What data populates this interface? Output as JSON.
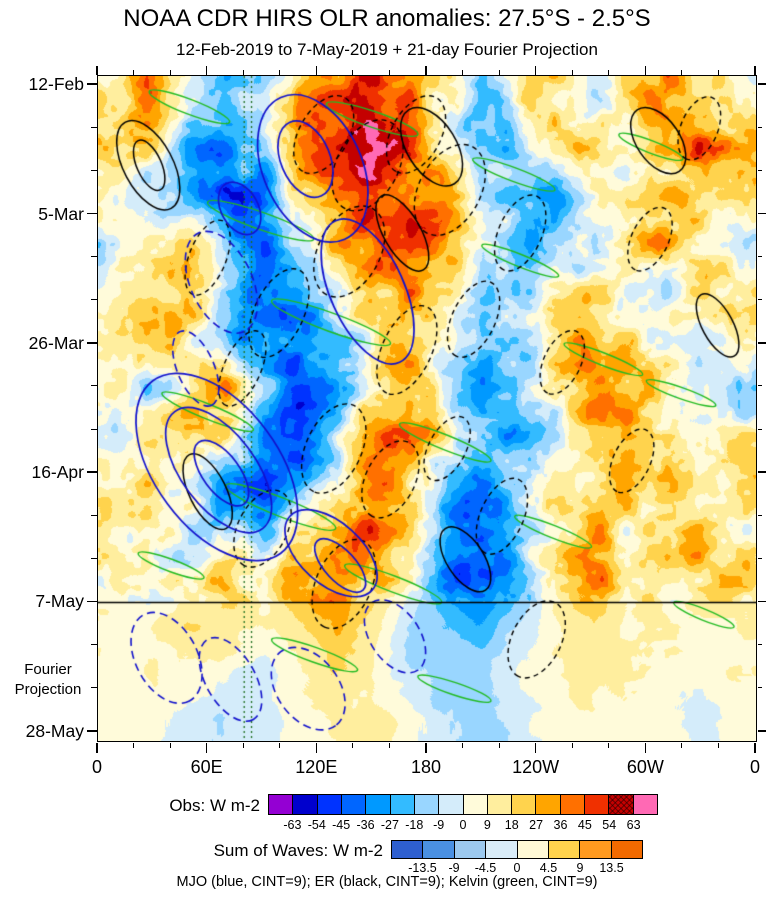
{
  "chart_data": {
    "type": "heatmap",
    "title": "NOAA CDR HIRS OLR anomalies: 27.5°S - 2.5°S",
    "subtitle": "12-Feb-2019 to 7-May-2019 + 21-day Fourier Projection",
    "value_unit": "W m-2",
    "projection_label_lines": [
      "Fourier",
      "Projection"
    ],
    "legend_line": "MJO (blue, CINT=9); ER (black, CINT=9); Kelvin (green, CINT=9)",
    "x_axis": {
      "unit": "longitude (deg east, 0-360)",
      "range": [
        0,
        360
      ],
      "minor_step_deg": 20,
      "ticks": [
        {
          "label": "0",
          "lon": 0
        },
        {
          "label": "60E",
          "lon": 60
        },
        {
          "label": "120E",
          "lon": 120
        },
        {
          "label": "180",
          "lon": 180
        },
        {
          "label": "120W",
          "lon": 240
        },
        {
          "label": "60W",
          "lon": 300
        },
        {
          "label": "0",
          "lon": 360
        }
      ]
    },
    "y_axis": {
      "unit": "days since 12-Feb-2019 (time increases downward)",
      "range_days": [
        -1.5,
        106.5
      ],
      "minor_step_days": 7,
      "ticks": [
        {
          "label": "12-Feb",
          "day": 0
        },
        {
          "label": "5-Mar",
          "day": 21
        },
        {
          "label": "26-Mar",
          "day": 42
        },
        {
          "label": "16-Apr",
          "day": 63
        },
        {
          "label": "7-May",
          "day": 84
        },
        {
          "label": "28-May",
          "day": 105
        }
      ]
    },
    "grid": {
      "lons": [
        0,
        20,
        40,
        60,
        80,
        100,
        120,
        140,
        160,
        180,
        200,
        220,
        240,
        260,
        280,
        300,
        320,
        340
      ],
      "days": [
        0,
        8,
        16,
        24,
        32,
        40,
        48,
        56,
        64,
        72,
        80,
        88,
        96,
        104
      ],
      "values": [
        [
          18,
          36,
          -9,
          -27,
          -18,
          27,
          45,
          54,
          36,
          9,
          -18,
          9,
          18,
          -9,
          27,
          36,
          18,
          9
        ],
        [
          27,
          18,
          -27,
          -36,
          -9,
          36,
          54,
          63,
          45,
          18,
          -27,
          -9,
          9,
          18,
          -9,
          27,
          45,
          27
        ],
        [
          9,
          -9,
          -18,
          -45,
          -36,
          9,
          45,
          54,
          36,
          27,
          -9,
          -18,
          -27,
          9,
          27,
          18,
          27,
          18
        ],
        [
          -9,
          9,
          18,
          -27,
          -45,
          -18,
          27,
          45,
          54,
          36,
          9,
          -27,
          -18,
          -9,
          18,
          36,
          9,
          -9
        ],
        [
          9,
          18,
          27,
          -9,
          -36,
          -27,
          9,
          27,
          36,
          18,
          -9,
          -18,
          9,
          18,
          9,
          -9,
          18,
          27
        ],
        [
          18,
          27,
          9,
          -18,
          -27,
          -36,
          -18,
          9,
          27,
          9,
          -27,
          -9,
          18,
          27,
          18,
          9,
          -9,
          9
        ],
        [
          9,
          -9,
          18,
          27,
          -18,
          -45,
          -27,
          18,
          36,
          -9,
          -36,
          -18,
          9,
          36,
          27,
          18,
          9,
          -18
        ],
        [
          -9,
          9,
          27,
          18,
          -36,
          -54,
          -18,
          27,
          45,
          18,
          -18,
          -27,
          -9,
          27,
          36,
          9,
          -9,
          9
        ],
        [
          9,
          18,
          9,
          -27,
          -45,
          -27,
          9,
          36,
          27,
          -18,
          -36,
          -9,
          18,
          9,
          18,
          27,
          9,
          18
        ],
        [
          18,
          9,
          -9,
          -18,
          -27,
          9,
          36,
          45,
          18,
          -27,
          -45,
          -18,
          9,
          27,
          9,
          18,
          27,
          9
        ],
        [
          9,
          -9,
          9,
          27,
          9,
          27,
          45,
          27,
          9,
          -36,
          -54,
          -27,
          18,
          36,
          18,
          9,
          18,
          18
        ],
        [
          9,
          9,
          18,
          18,
          9,
          18,
          27,
          18,
          -9,
          -18,
          -27,
          -9,
          9,
          18,
          9,
          9,
          9,
          9
        ],
        [
          5,
          9,
          9,
          5,
          -5,
          9,
          18,
          9,
          -9,
          -14,
          -9,
          5,
          9,
          14,
          9,
          5,
          5,
          9
        ],
        [
          5,
          5,
          -5,
          -9,
          -5,
          5,
          9,
          14,
          5,
          -9,
          -14,
          -5,
          5,
          9,
          5,
          5,
          -5,
          5
        ]
      ]
    },
    "palette": {
      "boundaries": [
        -63,
        -54,
        -45,
        -36,
        -27,
        -18,
        -9,
        0,
        9,
        18,
        27,
        36,
        45,
        54,
        63
      ],
      "colors": [
        "#9400d3",
        "#0000cd",
        "#0033ff",
        "#0066ff",
        "#0099ff",
        "#33bbff",
        "#99d6ff",
        "#d4ecfa",
        "#fffbda",
        "#ffee9e",
        "#ffd34d",
        "#ffa500",
        "#ff7000",
        "#f03000",
        "#c40000",
        "#ff69b4"
      ],
      "hatched_index": 14
    },
    "waves_palette": {
      "boundaries": [
        -13.5,
        -9,
        -4.5,
        0,
        4.5,
        9,
        13.5
      ],
      "colors": [
        "#2e5fd0",
        "#4a90e2",
        "#9cc9ef",
        "#d9ecf8",
        "#fff9d6",
        "#ffd34d",
        "#ff9a1f",
        "#f26a00"
      ]
    },
    "colorbar_obs": {
      "label": "Obs: W m-2"
    },
    "colorbar_waves": {
      "label": "Sum of Waves: W m-2"
    },
    "reference_lines": {
      "obs_projection_boundary_day": 84,
      "vertical_dotted_lons": [
        80,
        84
      ],
      "color": "#1f6f1f"
    },
    "overlays": {
      "mjo": {
        "color": "#1212cc",
        "cint": 9,
        "solid": [
          {
            "a": [
              100,
              2
            ],
            "b": [
              135,
              25
            ],
            "t": 8
          },
          {
            "a": [
              105,
              6
            ],
            "b": [
              122,
              18
            ],
            "t": 4
          },
          {
            "a": [
              130,
              22
            ],
            "b": [
              165,
              45
            ],
            "t": 6
          },
          {
            "a": [
              70,
              16
            ],
            "b": [
              85,
              24
            ],
            "t": 3
          },
          {
            "a": [
              30,
              48
            ],
            "b": [
              100,
              76
            ],
            "t": 10
          },
          {
            "a": [
              42,
              53
            ],
            "b": [
              90,
              72
            ],
            "t": 6
          },
          {
            "a": [
              55,
              58
            ],
            "b": [
              80,
              68
            ],
            "t": 3
          },
          {
            "a": [
              105,
              70
            ],
            "b": [
              150,
              82
            ],
            "t": 5
          },
          {
            "a": [
              120,
              74
            ],
            "b": [
              145,
              82
            ],
            "t": 2.5
          }
        ],
        "dashed": [
          {
            "a": [
              55,
              24
            ],
            "b": [
              80,
              40
            ],
            "t": 5
          },
          {
            "a": [
              45,
              40
            ],
            "b": [
              62,
              52
            ],
            "t": 3
          },
          {
            "a": [
              25,
              86
            ],
            "b": [
              50,
              100
            ],
            "t": 5
          },
          {
            "a": [
              60,
              90
            ],
            "b": [
              85,
              103
            ],
            "t": 4
          },
          {
            "a": [
              100,
              92
            ],
            "b": [
              130,
              104
            ],
            "t": 5
          },
          {
            "a": [
              150,
              84
            ],
            "b": [
              175,
              95
            ],
            "t": 4
          }
        ]
      },
      "er": {
        "color": "#000000",
        "cint": 9,
        "solid": [
          {
            "a": [
              15,
              6
            ],
            "b": [
              40,
              20
            ],
            "t": 4
          },
          {
            "a": [
              22,
              9
            ],
            "b": [
              34,
              17
            ],
            "t": 2
          },
          {
            "a": [
              170,
              4
            ],
            "b": [
              195,
              16
            ],
            "t": 4
          },
          {
            "a": [
              155,
              18
            ],
            "b": [
              178,
              30
            ],
            "t": 3
          },
          {
            "a": [
              295,
              4
            ],
            "b": [
              318,
              14
            ],
            "t": 3.5
          },
          {
            "a": [
              50,
              60
            ],
            "b": [
              70,
              72
            ],
            "t": 3
          },
          {
            "a": [
              190,
              72
            ],
            "b": [
              212,
              82
            ],
            "t": 3
          },
          {
            "a": [
              330,
              34
            ],
            "b": [
              348,
              44
            ],
            "t": 2.5
          }
        ],
        "dashed": [
          {
            "a": [
              135,
              2
            ],
            "b": [
              112,
              14
            ],
            "t": 4
          },
          {
            "a": [
              160,
              6
            ],
            "b": [
              135,
              20
            ],
            "t": 5
          },
          {
            "a": [
              185,
              2
            ],
            "b": [
              163,
              14
            ],
            "t": 4
          },
          {
            "a": [
              205,
              10
            ],
            "b": [
              180,
              24
            ],
            "t": 5
          },
          {
            "a": [
              150,
              20
            ],
            "b": [
              125,
              34
            ],
            "t": 5
          },
          {
            "a": [
              110,
              30
            ],
            "b": [
              88,
              44
            ],
            "t": 4
          },
          {
            "a": [
              88,
              40
            ],
            "b": [
              70,
              52
            ],
            "t": 3
          },
          {
            "a": [
              180,
              36
            ],
            "b": [
              158,
              50
            ],
            "t": 4
          },
          {
            "a": [
              215,
              32
            ],
            "b": [
              196,
              44
            ],
            "t": 3.5
          },
          {
            "a": [
              240,
              18
            ],
            "b": [
              222,
              30
            ],
            "t": 3.5
          },
          {
            "a": [
              68,
              22
            ],
            "b": [
              52,
              34
            ],
            "t": 3
          },
          {
            "a": [
              140,
              52
            ],
            "b": [
              118,
              66
            ],
            "t": 4.5
          },
          {
            "a": [
              170,
              58
            ],
            "b": [
              150,
              70
            ],
            "t": 4
          },
          {
            "a": [
              200,
              54
            ],
            "b": [
              182,
              64
            ],
            "t": 3
          },
          {
            "a": [
              100,
              66
            ],
            "b": [
              80,
              78
            ],
            "t": 4
          },
          {
            "a": [
              145,
              74
            ],
            "b": [
              124,
              88
            ],
            "t": 4.5
          },
          {
            "a": [
              230,
              64
            ],
            "b": [
              212,
              76
            ],
            "t": 3.5
          },
          {
            "a": [
              262,
              40
            ],
            "b": [
              246,
              50
            ],
            "t": 3
          },
          {
            "a": [
              300,
              56
            ],
            "b": [
              284,
              66
            ],
            "t": 3
          },
          {
            "a": [
              310,
              20
            ],
            "b": [
              294,
              30
            ],
            "t": 3
          },
          {
            "a": [
              336,
              2
            ],
            "b": [
              322,
              12
            ],
            "t": 3
          },
          {
            "a": [
              250,
              84
            ],
            "b": [
              230,
              96
            ],
            "t": 4
          }
        ]
      },
      "kelvin": {
        "color": "#22bb22",
        "cint": 9,
        "streaks": [
          {
            "a": [
              28,
              1
            ],
            "b": [
              72,
              6
            ],
            "t": 1.2
          },
          {
            "a": [
              125,
              3
            ],
            "b": [
              175,
              8
            ],
            "t": 1.3
          },
          {
            "a": [
              205,
              12
            ],
            "b": [
              250,
              17
            ],
            "t": 1.1
          },
          {
            "a": [
              285,
              8
            ],
            "b": [
              320,
              12
            ],
            "t": 1
          },
          {
            "a": [
              60,
              19
            ],
            "b": [
              118,
              25
            ],
            "t": 1.4
          },
          {
            "a": [
              210,
              26
            ],
            "b": [
              252,
              31
            ],
            "t": 1
          },
          {
            "a": [
              95,
              35
            ],
            "b": [
              160,
              42
            ],
            "t": 1.5
          },
          {
            "a": [
              255,
              42
            ],
            "b": [
              298,
              47
            ],
            "t": 1
          },
          {
            "a": [
              35,
              50
            ],
            "b": [
              85,
              56
            ],
            "t": 1.2
          },
          {
            "a": [
              165,
              55
            ],
            "b": [
              215,
              61
            ],
            "t": 1.2
          },
          {
            "a": [
              300,
              48
            ],
            "b": [
              338,
              52
            ],
            "t": 0.9
          },
          {
            "a": [
              70,
              65
            ],
            "b": [
              130,
              72
            ],
            "t": 1.5
          },
          {
            "a": [
              228,
              70
            ],
            "b": [
              270,
              75
            ],
            "t": 1
          },
          {
            "a": [
              135,
              78
            ],
            "b": [
              188,
              84
            ],
            "t": 1.3
          },
          {
            "a": [
              22,
              76
            ],
            "b": [
              58,
              80
            ],
            "t": 1
          },
          {
            "a": [
              95,
              90
            ],
            "b": [
              142,
              95
            ],
            "t": 1.2
          },
          {
            "a": [
              315,
              84
            ],
            "b": [
              348,
              88
            ],
            "t": 0.9
          },
          {
            "a": [
              175,
              96
            ],
            "b": [
              215,
              100
            ],
            "t": 1
          }
        ]
      }
    }
  }
}
